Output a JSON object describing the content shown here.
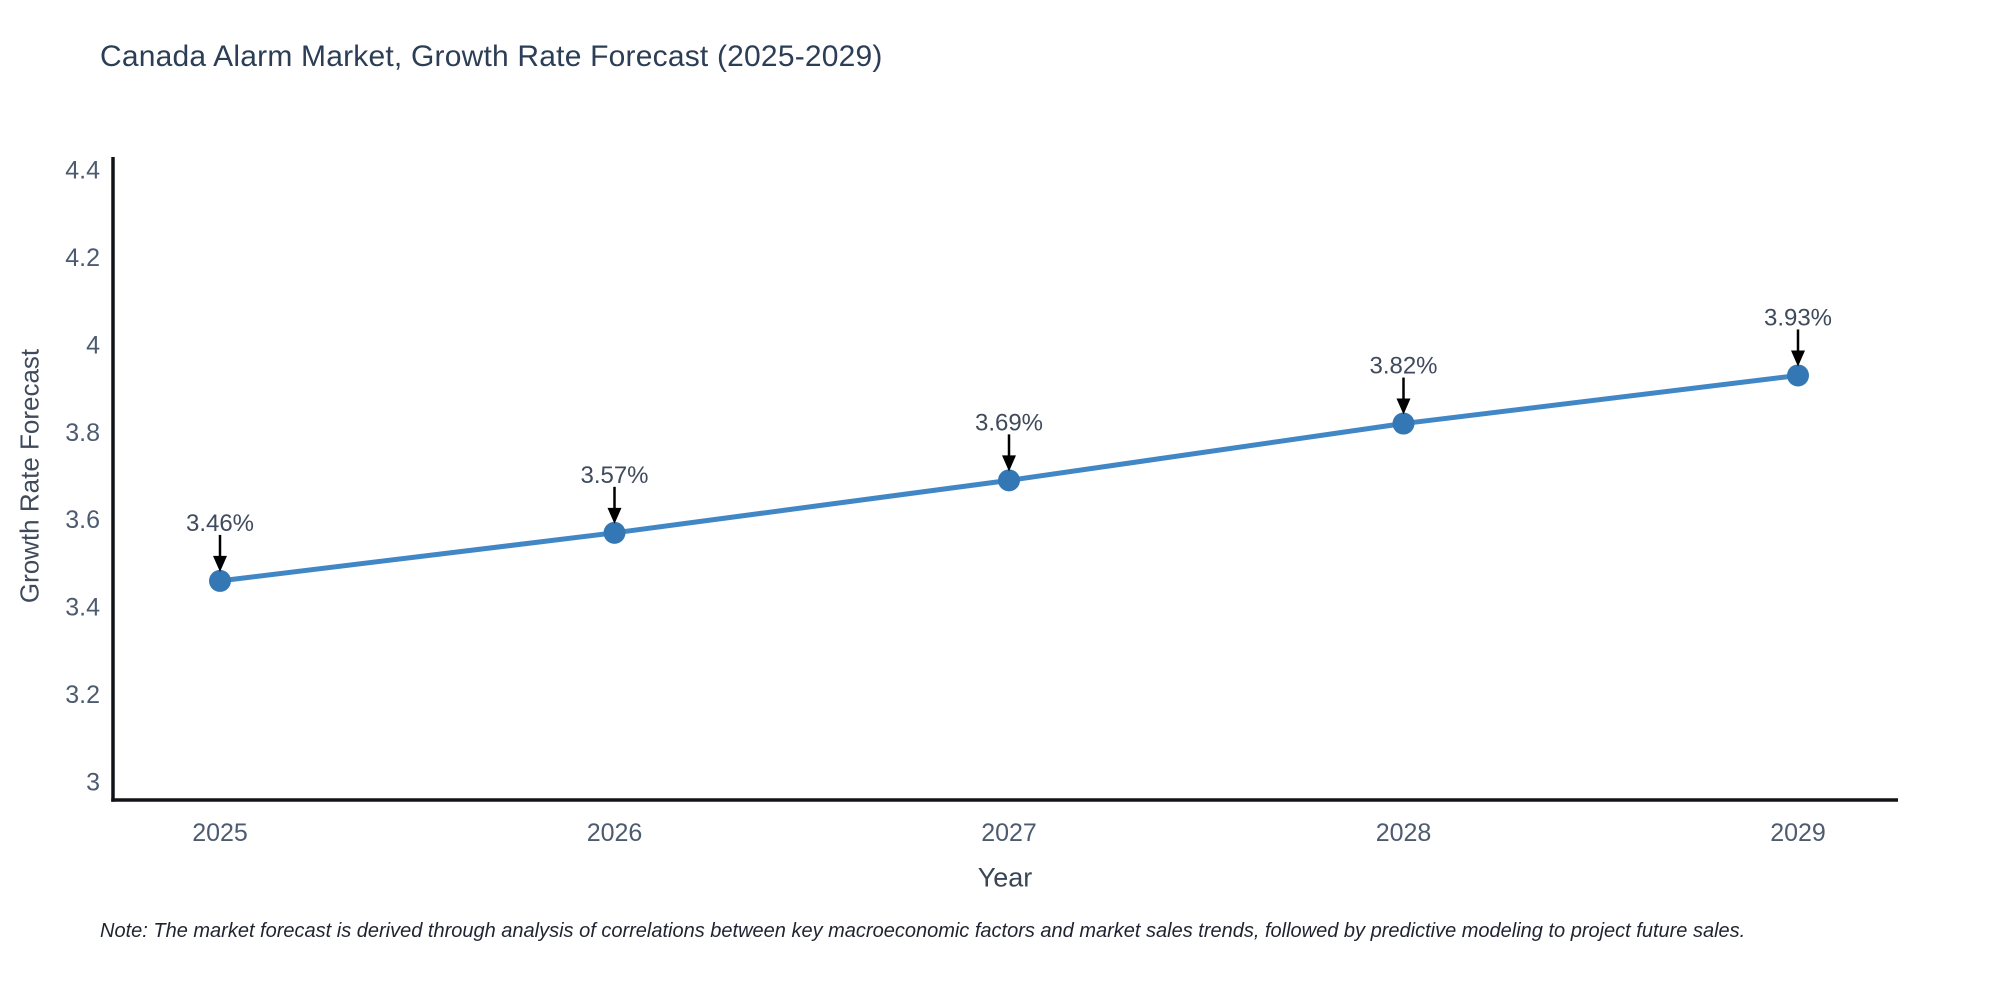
{
  "page": {
    "note": "Note: The market forecast is derived through analysis of correlations between key macroeconomic factors and market sales trends, followed by predictive modeling to project future sales."
  },
  "chart_data": {
    "type": "line",
    "title": "Canada Alarm Market, Growth Rate Forecast (2025-2029)",
    "xlabel": "Year",
    "ylabel": "Growth Rate Forecast",
    "x": [
      2025,
      2026,
      2027,
      2028,
      2029
    ],
    "x_tick_labels": [
      "2025",
      "2026",
      "2027",
      "2028",
      "2029"
    ],
    "series": [
      {
        "name": "Growth Rate Forecast",
        "values": [
          3.46,
          3.57,
          3.69,
          3.82,
          3.93
        ],
        "point_labels": [
          "3.46%",
          "3.57%",
          "3.69%",
          "3.82%",
          "3.93%"
        ]
      }
    ],
    "ylim": [
      3,
      4.4
    ],
    "y_ticks": [
      3,
      3.2,
      3.4,
      3.6,
      3.8,
      4,
      4.2,
      4.4
    ],
    "y_tick_labels": [
      "3",
      "3.2",
      "3.4",
      "3.6",
      "3.8",
      "4",
      "4.2",
      "4.4"
    ],
    "grid": false,
    "legend": "none",
    "annotation_arrows": true,
    "colors": {
      "line": "#4287c5",
      "marker": "#3378b4",
      "axis": "#101418",
      "arrow": "#000000"
    }
  }
}
